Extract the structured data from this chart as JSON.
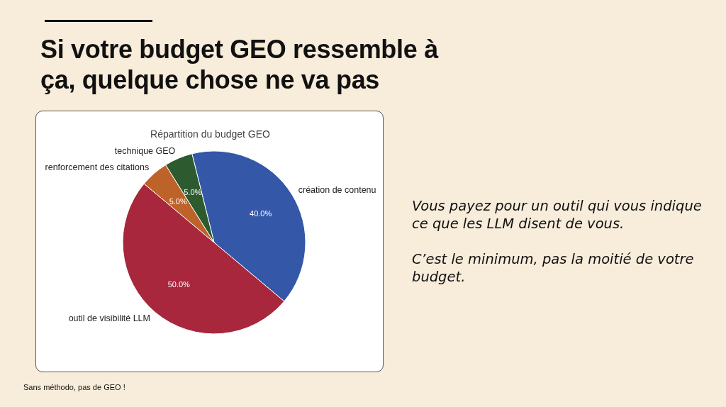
{
  "chart_data": {
    "type": "pie",
    "title": "Si votre budget GEO ressemble à ça, quelque chose ne va pas",
    "subtitle": "Répartition du budget GEO",
    "categories": [
      "création de contenu",
      "outil de visibilité LLM",
      "renforcement des citations",
      "technique GEO"
    ],
    "values": [
      40,
      50,
      5,
      5
    ],
    "colors": [
      "#3457a8",
      "#a8273c",
      "#bd6229",
      "#2e5a30"
    ],
    "value_labels": [
      "40.0%",
      "50.0%",
      "5.0%",
      "5.0%"
    ],
    "annotations": [
      "Vous payez pour un outil qui vous indique ce que les LLM disent de vous.",
      "C’est le minimum, pas la moitié de votre budget.",
      "Sans méthodo, pas de GEO !"
    ]
  }
}
